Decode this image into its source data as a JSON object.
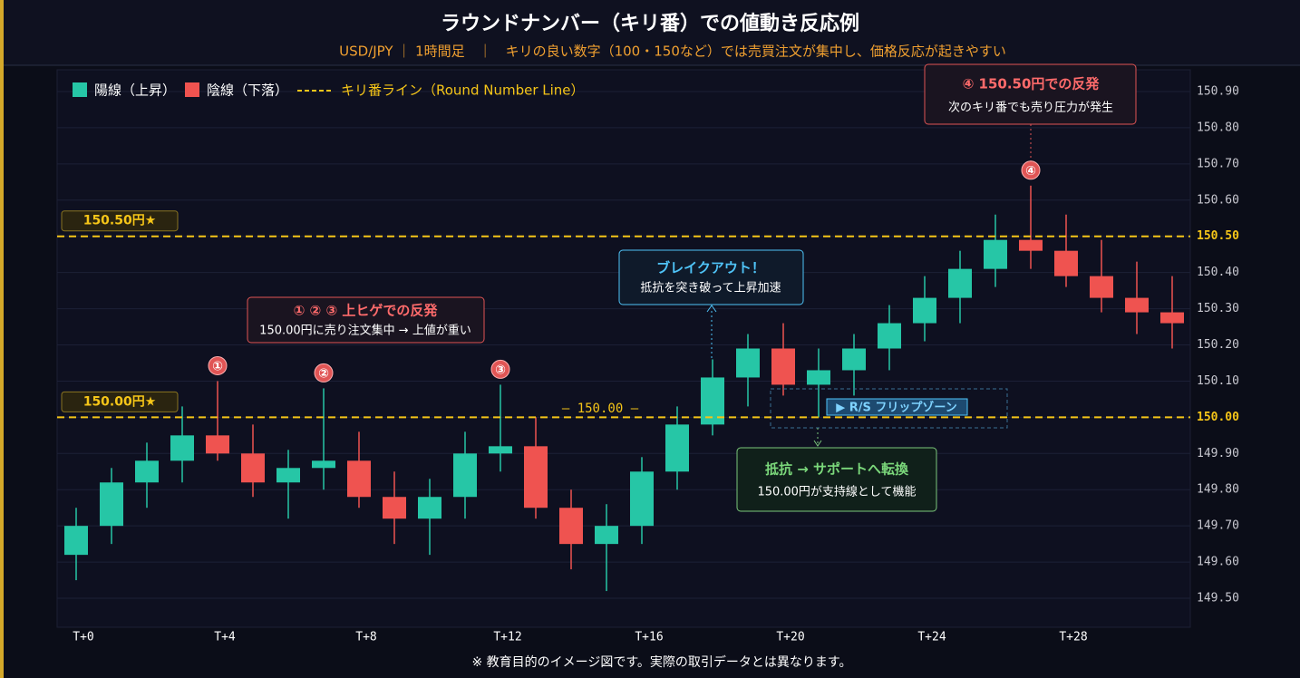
{
  "chart_data": {
    "type": "candlestick",
    "title": "ラウンドナンバー（キリ番）での値動き反応例",
    "subtitle": "USD/JPY ｜ 1時間足　｜　キリの良い数字（100・150など）では売買注文が集中し、価格反応が起きやすい",
    "footer": "※ 教育目的のイメージ図です。実際の取引データとは異なります。",
    "categories": [
      "T+0",
      null,
      null,
      null,
      "T+4",
      null,
      null,
      null,
      "T+8",
      null,
      null,
      null,
      "T+12",
      null,
      null,
      null,
      "T+16",
      null,
      null,
      null,
      "T+20",
      null,
      null,
      null,
      "T+24",
      null,
      null,
      null,
      "T+28",
      null,
      null,
      null
    ],
    "open": [
      149.62,
      149.7,
      149.82,
      149.88,
      149.95,
      149.9,
      149.82,
      149.86,
      149.88,
      149.78,
      149.72,
      149.78,
      149.9,
      149.92,
      149.75,
      149.65,
      149.7,
      149.85,
      149.98,
      150.11,
      150.19,
      150.09,
      150.13,
      150.19,
      150.26,
      150.33,
      150.41,
      150.49,
      150.46,
      150.39,
      150.33,
      150.29
    ],
    "high": [
      149.75,
      149.86,
      149.93,
      150.03,
      150.1,
      149.98,
      149.91,
      150.08,
      149.96,
      149.85,
      149.83,
      149.96,
      150.09,
      150.0,
      149.8,
      149.76,
      149.89,
      150.03,
      150.16,
      150.23,
      150.26,
      150.19,
      150.23,
      150.31,
      150.39,
      150.46,
      150.56,
      150.64,
      150.56,
      150.49,
      150.43,
      150.39
    ],
    "low": [
      149.55,
      149.65,
      149.75,
      149.82,
      149.88,
      149.78,
      149.72,
      149.8,
      149.75,
      149.65,
      149.62,
      149.72,
      149.85,
      149.72,
      149.58,
      149.52,
      149.65,
      149.8,
      149.95,
      150.03,
      150.06,
      150.0,
      150.06,
      150.13,
      150.21,
      150.26,
      150.36,
      150.41,
      150.36,
      150.29,
      150.23,
      150.19
    ],
    "close": [
      149.7,
      149.82,
      149.88,
      149.95,
      149.9,
      149.82,
      149.86,
      149.88,
      149.78,
      149.72,
      149.78,
      149.9,
      149.92,
      149.75,
      149.65,
      149.7,
      149.85,
      149.98,
      150.11,
      150.19,
      150.09,
      150.13,
      150.19,
      150.26,
      150.33,
      150.41,
      150.49,
      150.46,
      150.39,
      150.33,
      150.29,
      150.26
    ],
    "up": {
      "name": "陽線（上昇）",
      "color": "#26c6a6"
    },
    "down": {
      "name": "陰線（下落）",
      "color": "#ef5350"
    },
    "round_line_name": "キリ番ライン（Round Number Line）",
    "round_line_color": "#f5c518",
    "round_lines": [
      {
        "value": 150.5,
        "label": "150.50円★"
      },
      {
        "value": 150.0,
        "label": "150.00円★"
      }
    ],
    "ylim": [
      149.42,
      150.96
    ],
    "yticks": [
      {
        "value": 149.5,
        "label": "149.50"
      },
      {
        "value": 149.6,
        "label": "149.60"
      },
      {
        "value": 149.7,
        "label": "149.70"
      },
      {
        "value": 149.8,
        "label": "149.80"
      },
      {
        "value": 149.9,
        "label": "149.90"
      },
      {
        "value": 150.0,
        "label": "150.00"
      },
      {
        "value": 150.1,
        "label": "150.10"
      },
      {
        "value": 150.2,
        "label": "150.20"
      },
      {
        "value": 150.3,
        "label": "150.30"
      },
      {
        "value": 150.4,
        "label": "150.40"
      },
      {
        "value": 150.5,
        "label": "150.50"
      },
      {
        "value": 150.6,
        "label": "150.60"
      },
      {
        "value": 150.7,
        "label": "150.70"
      },
      {
        "value": 150.8,
        "label": "150.80"
      },
      {
        "value": 150.9,
        "label": "150.90"
      }
    ],
    "grid": true,
    "markers": [
      {
        "index": 4,
        "label": "①"
      },
      {
        "index": 7,
        "label": "②"
      },
      {
        "index": 12,
        "label": "③"
      },
      {
        "index": 27,
        "label": "④"
      }
    ],
    "annotations": {
      "mid_line_label": "— 150.00 —",
      "rejection_title": "① ② ③ 上ヒゲでの反発",
      "rejection_text": "150.00円に売り注文集中 → 上値が重い",
      "breakout_title": "ブレイクアウト！",
      "breakout_text": "抵抗を突き破って上昇加速",
      "flip_zone": "▶ R/S フリップゾーン",
      "support_title": "抵抗 → サポートへ転換",
      "support_text": "150.00円が支持線として機能",
      "top_title": "④ 150.50円での反発",
      "top_text": "次のキリ番でも売り圧力が発生"
    }
  }
}
